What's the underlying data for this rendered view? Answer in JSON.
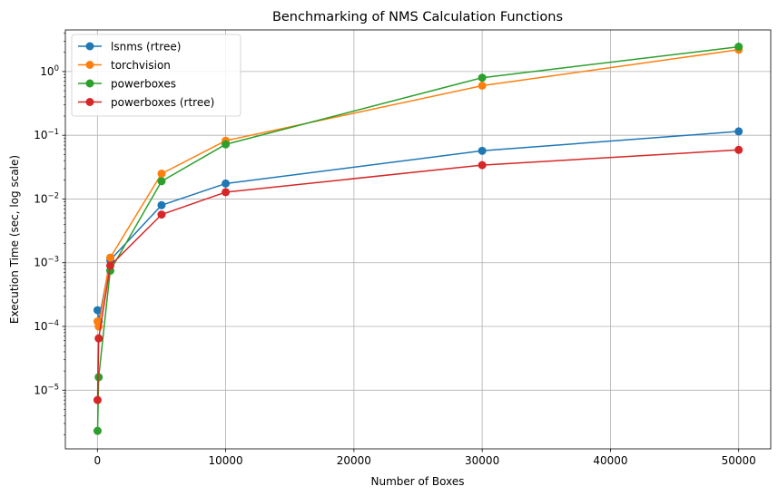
{
  "chart_data": {
    "type": "line",
    "title": "Benchmarking of NMS Calculation Functions",
    "xlabel": "Number of Boxes",
    "ylabel": "Execution Time (sec, log scale)",
    "yscale": "log",
    "xlim": [
      -2500,
      52500
    ],
    "ylim": [
      1.2e-06,
      4.5
    ],
    "grid": true,
    "legend_position": "upper-left",
    "x": [
      10,
      100,
      1000,
      5000,
      10000,
      30000,
      50000
    ],
    "x_ticks": [
      0,
      10000,
      20000,
      30000,
      40000,
      50000
    ],
    "x_tick_labels": [
      "0",
      "10000",
      "20000",
      "30000",
      "40000",
      "50000"
    ],
    "y_ticks": [
      {
        "value": 1e-05,
        "base": "10",
        "exp": "−5"
      },
      {
        "value": 0.0001,
        "base": "10",
        "exp": "−4"
      },
      {
        "value": 0.001,
        "base": "10",
        "exp": "−3"
      },
      {
        "value": 0.01,
        "base": "10",
        "exp": "−2"
      },
      {
        "value": 0.1,
        "base": "10",
        "exp": "−1"
      },
      {
        "value": 1,
        "base": "10",
        "exp": "0"
      }
    ],
    "series": [
      {
        "name": "lsnms (rtree)",
        "color": "#1f77b4",
        "values": [
          0.00018,
          0.00012,
          0.0011,
          0.008,
          0.0175,
          0.057,
          0.115
        ]
      },
      {
        "name": "torchvision",
        "color": "#ff7f0e",
        "values": [
          0.00012,
          0.0001,
          0.0012,
          0.025,
          0.082,
          0.6,
          2.2
        ]
      },
      {
        "name": "powerboxes",
        "color": "#2ca02c",
        "values": [
          2.3e-06,
          1.6e-05,
          0.00075,
          0.019,
          0.072,
          0.8,
          2.45
        ]
      },
      {
        "name": "powerboxes (rtree)",
        "color": "#d62728",
        "values": [
          7e-06,
          6.5e-05,
          0.0009,
          0.0057,
          0.0128,
          0.034,
          0.059
        ]
      }
    ]
  }
}
